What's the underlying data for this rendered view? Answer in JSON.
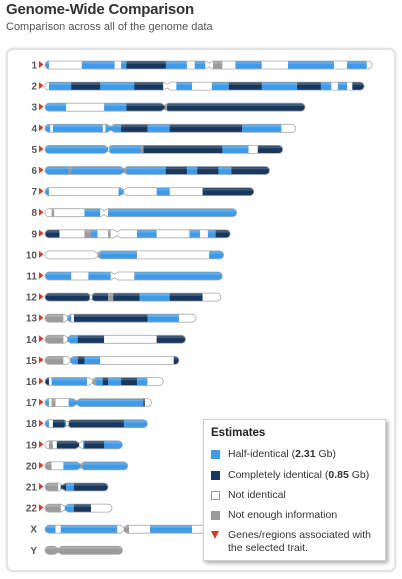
{
  "title": "Genome-Wide Comparison",
  "subtitle": "Comparison across all of the genome data",
  "colors": {
    "half": "#3f9be8",
    "full": "#17375e",
    "none": "#ffffff",
    "nodata": "#9b9b9b",
    "outline": "#aaaaaa",
    "marker": "#d93a2b"
  },
  "legend": {
    "title": "Estimates",
    "items": [
      {
        "key": "half",
        "label": "Half-identical (",
        "value": "2.31",
        "suffix": " Gb)"
      },
      {
        "key": "full",
        "label": "Completely identical (",
        "value": "0.85",
        "suffix": " Gb)"
      },
      {
        "key": "none",
        "label": "Not identical"
      },
      {
        "key": "nodata",
        "label": "Not enough information"
      },
      {
        "key": "marker",
        "label": "Genes/regions associated with the selected trait."
      }
    ]
  },
  "chart_data": {
    "type": "genome ideogram",
    "unit": "Mb",
    "categories": {
      "half": "Half-identical",
      "full": "Completely identical",
      "none": "Not identical",
      "nodata": "Not enough information"
    },
    "chromosomes": [
      {
        "label": "1",
        "length": 249,
        "centromere": 125,
        "marker": true,
        "segments": [
          [
            0,
            3,
            "half"
          ],
          [
            3,
            28,
            "none"
          ],
          [
            28,
            53,
            "half"
          ],
          [
            53,
            58,
            "none"
          ],
          [
            58,
            62,
            "half"
          ],
          [
            62,
            92,
            "full"
          ],
          [
            92,
            108,
            "half"
          ],
          [
            108,
            114,
            "none"
          ],
          [
            114,
            122,
            "half"
          ],
          [
            122,
            128,
            "none"
          ],
          [
            128,
            135,
            "nodata"
          ],
          [
            135,
            145,
            "none"
          ],
          [
            145,
            165,
            "half"
          ],
          [
            165,
            185,
            "none"
          ],
          [
            185,
            220,
            "half"
          ],
          [
            220,
            230,
            "none"
          ],
          [
            230,
            245,
            "half"
          ],
          [
            245,
            249,
            "none"
          ]
        ]
      },
      {
        "label": "2",
        "length": 243,
        "centromere": 93,
        "marker": true,
        "segments": [
          [
            0,
            3,
            "none"
          ],
          [
            3,
            20,
            "half"
          ],
          [
            20,
            42,
            "full"
          ],
          [
            42,
            68,
            "half"
          ],
          [
            68,
            90,
            "full"
          ],
          [
            90,
            100,
            "none"
          ],
          [
            100,
            112,
            "half"
          ],
          [
            112,
            127,
            "none"
          ],
          [
            127,
            140,
            "half"
          ],
          [
            140,
            165,
            "full"
          ],
          [
            165,
            192,
            "half"
          ],
          [
            192,
            210,
            "full"
          ],
          [
            210,
            218,
            "half"
          ],
          [
            218,
            223,
            "none"
          ],
          [
            223,
            230,
            "half"
          ],
          [
            230,
            234,
            "none"
          ],
          [
            234,
            243,
            "full"
          ]
        ]
      },
      {
        "label": "3",
        "length": 198,
        "centromere": 91,
        "marker": true,
        "segments": [
          [
            0,
            16,
            "half"
          ],
          [
            16,
            45,
            "none"
          ],
          [
            45,
            62,
            "half"
          ],
          [
            62,
            91,
            "full"
          ],
          [
            91,
            93,
            "nodata"
          ],
          [
            93,
            198,
            "full"
          ]
        ]
      },
      {
        "label": "4",
        "length": 191,
        "centromere": 50,
        "marker": true,
        "segments": [
          [
            0,
            4,
            "half"
          ],
          [
            4,
            6,
            "none"
          ],
          [
            6,
            44,
            "half"
          ],
          [
            44,
            46,
            "none"
          ],
          [
            46,
            58,
            "half"
          ],
          [
            58,
            78,
            "full"
          ],
          [
            78,
            95,
            "half"
          ],
          [
            95,
            150,
            "full"
          ],
          [
            150,
            180,
            "half"
          ],
          [
            180,
            191,
            "none"
          ]
        ]
      },
      {
        "label": "5",
        "length": 181,
        "centromere": 48,
        "marker": true,
        "segments": [
          [
            0,
            48,
            "half"
          ],
          [
            48,
            49,
            "none"
          ],
          [
            49,
            73,
            "half"
          ],
          [
            73,
            75,
            "nodata"
          ],
          [
            75,
            135,
            "full"
          ],
          [
            135,
            155,
            "half"
          ],
          [
            155,
            162,
            "none"
          ],
          [
            162,
            181,
            "full"
          ]
        ]
      },
      {
        "label": "6",
        "length": 171,
        "centromere": 60,
        "marker": true,
        "segments": [
          [
            0,
            18,
            "half"
          ],
          [
            18,
            20,
            "nodata"
          ],
          [
            20,
            60,
            "half"
          ],
          [
            60,
            62,
            "nodata"
          ],
          [
            62,
            92,
            "half"
          ],
          [
            92,
            108,
            "full"
          ],
          [
            108,
            116,
            "half"
          ],
          [
            116,
            132,
            "full"
          ],
          [
            132,
            142,
            "half"
          ],
          [
            142,
            171,
            "full"
          ]
        ]
      },
      {
        "label": "7",
        "length": 159,
        "centromere": 60,
        "marker": true,
        "segments": [
          [
            0,
            3,
            "half"
          ],
          [
            3,
            56,
            "none"
          ],
          [
            56,
            60,
            "half"
          ],
          [
            60,
            85,
            "none"
          ],
          [
            85,
            95,
            "half"
          ],
          [
            95,
            120,
            "none"
          ],
          [
            120,
            159,
            "full"
          ]
        ]
      },
      {
        "label": "8",
        "length": 146,
        "centromere": 45,
        "marker": true,
        "segments": [
          [
            0,
            5,
            "none"
          ],
          [
            5,
            7,
            "nodata"
          ],
          [
            7,
            30,
            "none"
          ],
          [
            30,
            42,
            "half"
          ],
          [
            42,
            48,
            "none"
          ],
          [
            48,
            146,
            "half"
          ]
        ]
      },
      {
        "label": "9",
        "length": 141,
        "centromere": 55,
        "marker": true,
        "segments": [
          [
            0,
            11,
            "full"
          ],
          [
            11,
            30,
            "none"
          ],
          [
            30,
            35,
            "nodata"
          ],
          [
            35,
            40,
            "half"
          ],
          [
            40,
            48,
            "none"
          ],
          [
            48,
            50,
            "nodata"
          ],
          [
            50,
            70,
            "none"
          ],
          [
            70,
            85,
            "half"
          ],
          [
            85,
            110,
            "none"
          ],
          [
            110,
            118,
            "half"
          ],
          [
            118,
            124,
            "none"
          ],
          [
            124,
            130,
            "half"
          ],
          [
            130,
            141,
            "full"
          ]
        ]
      },
      {
        "label": "10",
        "length": 136,
        "centromere": 40,
        "marker": true,
        "segments": [
          [
            0,
            40,
            "none"
          ],
          [
            40,
            42,
            "nodata"
          ],
          [
            42,
            70,
            "half"
          ],
          [
            70,
            125,
            "none"
          ],
          [
            125,
            136,
            "half"
          ]
        ]
      },
      {
        "label": "11",
        "length": 135,
        "centromere": 53,
        "marker": true,
        "segments": [
          [
            0,
            20,
            "half"
          ],
          [
            20,
            33,
            "none"
          ],
          [
            33,
            50,
            "half"
          ],
          [
            50,
            68,
            "none"
          ],
          [
            68,
            135,
            "half"
          ]
        ]
      },
      {
        "label": "12",
        "length": 134,
        "centromere": 35,
        "marker": true,
        "segments": [
          [
            0,
            34,
            "full"
          ],
          [
            34,
            36,
            "none"
          ],
          [
            36,
            48,
            "full"
          ],
          [
            48,
            52,
            "nodata"
          ],
          [
            52,
            72,
            "full"
          ],
          [
            72,
            95,
            "half"
          ],
          [
            95,
            120,
            "full"
          ],
          [
            120,
            134,
            "none"
          ]
        ]
      },
      {
        "label": "13",
        "length": 115,
        "centromere": 17,
        "marker": true,
        "segments": [
          [
            0,
            14,
            "nodata"
          ],
          [
            14,
            17,
            "none"
          ],
          [
            17,
            20,
            "half"
          ],
          [
            20,
            22,
            "none"
          ],
          [
            22,
            78,
            "full"
          ],
          [
            78,
            102,
            "half"
          ],
          [
            102,
            115,
            "none"
          ]
        ]
      },
      {
        "label": "14",
        "length": 107,
        "centromere": 17,
        "marker": true,
        "segments": [
          [
            0,
            14,
            "nodata"
          ],
          [
            14,
            17,
            "none"
          ],
          [
            17,
            25,
            "half"
          ],
          [
            25,
            45,
            "full"
          ],
          [
            45,
            85,
            "none"
          ],
          [
            85,
            107,
            "full"
          ]
        ]
      },
      {
        "label": "15",
        "length": 102,
        "centromere": 19,
        "marker": true,
        "segments": [
          [
            0,
            14,
            "nodata"
          ],
          [
            14,
            19,
            "none"
          ],
          [
            19,
            25,
            "half"
          ],
          [
            25,
            30,
            "full"
          ],
          [
            30,
            42,
            "half"
          ],
          [
            42,
            98,
            "none"
          ],
          [
            98,
            102,
            "full"
          ]
        ]
      },
      {
        "label": "16",
        "length": 90,
        "centromere": 36,
        "marker": true,
        "segments": [
          [
            0,
            3,
            "full"
          ],
          [
            3,
            5,
            "none"
          ],
          [
            5,
            32,
            "half"
          ],
          [
            32,
            36,
            "none"
          ],
          [
            36,
            39,
            "nodata"
          ],
          [
            39,
            44,
            "half"
          ],
          [
            44,
            48,
            "full"
          ],
          [
            48,
            58,
            "half"
          ],
          [
            58,
            70,
            "full"
          ],
          [
            70,
            78,
            "half"
          ],
          [
            78,
            90,
            "none"
          ]
        ]
      },
      {
        "label": "17",
        "length": 81,
        "centromere": 24,
        "marker": true,
        "segments": [
          [
            0,
            3,
            "half"
          ],
          [
            3,
            5,
            "none"
          ],
          [
            5,
            8,
            "nodata"
          ],
          [
            8,
            18,
            "none"
          ],
          [
            18,
            75,
            "half"
          ],
          [
            75,
            76,
            "full"
          ],
          [
            76,
            81,
            "none"
          ]
        ]
      },
      {
        "label": "18",
        "length": 78,
        "centromere": 17,
        "marker": true,
        "segments": [
          [
            0,
            3,
            "half"
          ],
          [
            3,
            6,
            "none"
          ],
          [
            6,
            15,
            "full"
          ],
          [
            15,
            16,
            "half"
          ],
          [
            16,
            18,
            "none"
          ],
          [
            18,
            60,
            "full"
          ],
          [
            60,
            78,
            "half"
          ]
        ]
      },
      {
        "label": "19",
        "length": 59,
        "centromere": 26,
        "marker": true,
        "segments": [
          [
            0,
            3,
            "none"
          ],
          [
            3,
            6,
            "nodata"
          ],
          [
            6,
            9,
            "none"
          ],
          [
            9,
            26,
            "full"
          ],
          [
            26,
            29,
            "none"
          ],
          [
            29,
            30,
            "half"
          ],
          [
            30,
            45,
            "full"
          ],
          [
            45,
            59,
            "half"
          ]
        ]
      },
      {
        "label": "20",
        "length": 63,
        "centromere": 27,
        "marker": true,
        "segments": [
          [
            0,
            5,
            "nodata"
          ],
          [
            5,
            14,
            "none"
          ],
          [
            14,
            27,
            "half"
          ],
          [
            27,
            29,
            "nodata"
          ],
          [
            29,
            63,
            "half"
          ]
        ]
      },
      {
        "label": "21",
        "length": 48,
        "centromere": 13,
        "marker": true,
        "segments": [
          [
            0,
            10,
            "nodata"
          ],
          [
            10,
            12,
            "none"
          ],
          [
            12,
            16,
            "full"
          ],
          [
            16,
            22,
            "half"
          ],
          [
            22,
            48,
            "full"
          ]
        ]
      },
      {
        "label": "22",
        "length": 51,
        "centromere": 15,
        "marker": true,
        "segments": [
          [
            0,
            12,
            "nodata"
          ],
          [
            12,
            15,
            "none"
          ],
          [
            15,
            22,
            "half"
          ],
          [
            22,
            35,
            "full"
          ],
          [
            35,
            51,
            "none"
          ]
        ]
      },
      {
        "label": "X",
        "length": 155,
        "centromere": 60,
        "marker": false,
        "segments": [
          [
            0,
            8,
            "half"
          ],
          [
            8,
            12,
            "none"
          ],
          [
            12,
            55,
            "half"
          ],
          [
            55,
            60,
            "none"
          ],
          [
            60,
            64,
            "nodata"
          ],
          [
            64,
            80,
            "none"
          ],
          [
            80,
            112,
            "half"
          ],
          [
            112,
            148,
            "none"
          ],
          [
            148,
            155,
            "half"
          ]
        ]
      },
      {
        "label": "Y",
        "length": 59,
        "centromere": 10,
        "marker": false,
        "segments": [
          [
            0,
            59,
            "nodata"
          ]
        ]
      }
    ]
  }
}
